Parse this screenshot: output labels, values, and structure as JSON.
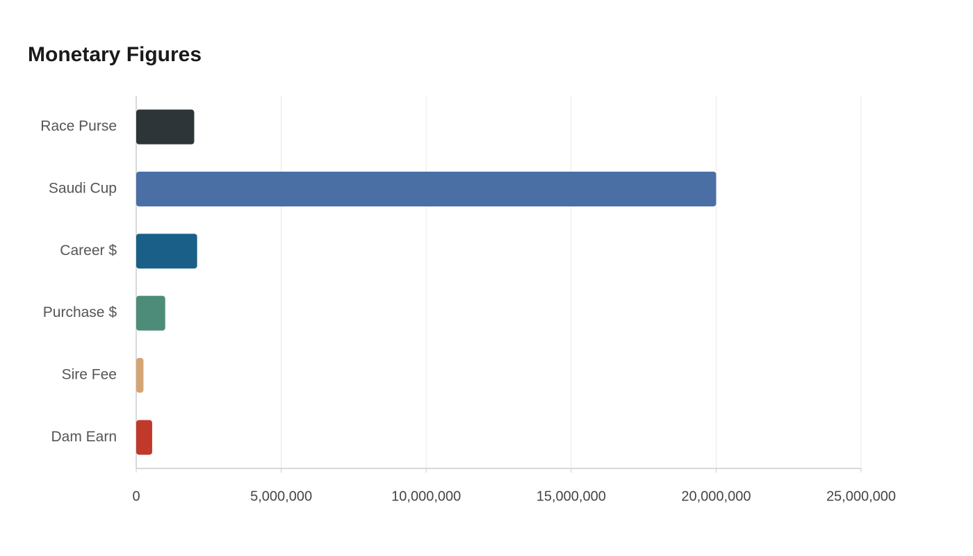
{
  "chart_data": {
    "type": "hbar",
    "title": "Monetary Figures",
    "categories": [
      "Race Purse",
      "Saudi Cup",
      "Career $",
      "Purchase $",
      "Sire Fee",
      "Dam Earn"
    ],
    "values": [
      2000000,
      20000000,
      2100000,
      1000000,
      250000,
      550000
    ],
    "colors": [
      "#2e3538",
      "#4a6fa5",
      "#1a5f87",
      "#4e8c7a",
      "#d4a574",
      "#c0392b"
    ],
    "xlim": [
      0,
      25000000
    ],
    "xticks": [
      0,
      {
        "value": 5000000,
        "label": "5,000,000"
      },
      {
        "value": 10000000,
        "label": "10,000,000"
      },
      {
        "value": 15000000,
        "label": "15,000,000"
      },
      {
        "value": 20000000,
        "label": "20,000,000"
      },
      {
        "value": 25000000,
        "label": "25,000,000"
      }
    ],
    "grid": true
  }
}
